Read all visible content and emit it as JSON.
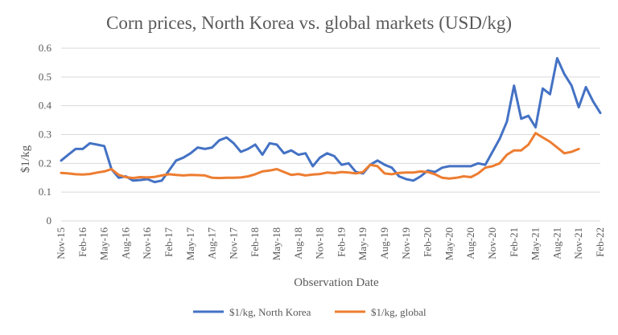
{
  "chart_data": {
    "type": "line",
    "title": "Corn prices, North Korea vs. global markets (USD/kg)",
    "xlabel": "Observation Date",
    "ylabel": "$1/kg",
    "ylim": [
      0,
      0.6
    ],
    "yticks": [
      "0",
      "0.1",
      "0.2",
      "0.3",
      "0.4",
      "0.5",
      "0.6"
    ],
    "x_start": "Nov-15",
    "x_tick_labels": [
      "Nov-15",
      "Feb-16",
      "May-16",
      "Aug-16",
      "Nov-16",
      "Feb-17",
      "May-17",
      "Aug-17",
      "Nov-17",
      "Feb-18",
      "May-18",
      "Aug-18",
      "Nov-18",
      "Feb-19",
      "May-19",
      "Aug-19",
      "Nov-19",
      "Feb-20",
      "May-20",
      "Aug-20",
      "Nov-20",
      "Feb-21",
      "May-21",
      "Aug-21",
      "Nov-21",
      "Feb-22"
    ],
    "grid": "horizontal",
    "legend_position": "bottom",
    "series": [
      {
        "name": "$1/kg, North Korea",
        "color": "#4472C4",
        "values": [
          0.21,
          0.23,
          0.25,
          0.25,
          0.27,
          0.265,
          0.26,
          0.18,
          0.15,
          0.155,
          0.14,
          0.142,
          0.145,
          0.135,
          0.14,
          0.175,
          0.21,
          0.22,
          0.235,
          0.255,
          0.25,
          0.255,
          0.28,
          0.29,
          0.27,
          0.24,
          0.25,
          0.265,
          0.23,
          0.27,
          0.265,
          0.235,
          0.245,
          0.23,
          0.235,
          0.19,
          0.22,
          0.235,
          0.225,
          0.195,
          0.2,
          0.17,
          0.165,
          0.195,
          0.21,
          0.195,
          0.185,
          0.155,
          0.145,
          0.14,
          0.155,
          0.175,
          0.17,
          0.185,
          0.19,
          0.19,
          0.19,
          0.19,
          0.2,
          0.195,
          0.24,
          0.285,
          0.345,
          0.47,
          0.355,
          0.365,
          0.325,
          0.46,
          0.44,
          0.565,
          0.51,
          0.47,
          0.395,
          0.465,
          0.415,
          0.375
        ]
      },
      {
        "name": "$1/kg, global",
        "color": "#ED7D31",
        "values": [
          0.167,
          0.165,
          0.162,
          0.161,
          0.163,
          0.168,
          0.172,
          0.18,
          0.16,
          0.152,
          0.149,
          0.152,
          0.151,
          0.153,
          0.158,
          0.162,
          0.16,
          0.158,
          0.16,
          0.159,
          0.158,
          0.15,
          0.149,
          0.15,
          0.15,
          0.151,
          0.155,
          0.162,
          0.172,
          0.175,
          0.18,
          0.17,
          0.16,
          0.163,
          0.158,
          0.161,
          0.163,
          0.168,
          0.166,
          0.17,
          0.168,
          0.165,
          0.17,
          0.195,
          0.19,
          0.165,
          0.162,
          0.167,
          0.168,
          0.168,
          0.172,
          0.17,
          0.162,
          0.15,
          0.147,
          0.15,
          0.155,
          0.152,
          0.165,
          0.185,
          0.19,
          0.2,
          0.23,
          0.245,
          0.245,
          0.265,
          0.305,
          0.29,
          0.275,
          0.255,
          0.235,
          0.24,
          0.25
        ]
      }
    ]
  }
}
